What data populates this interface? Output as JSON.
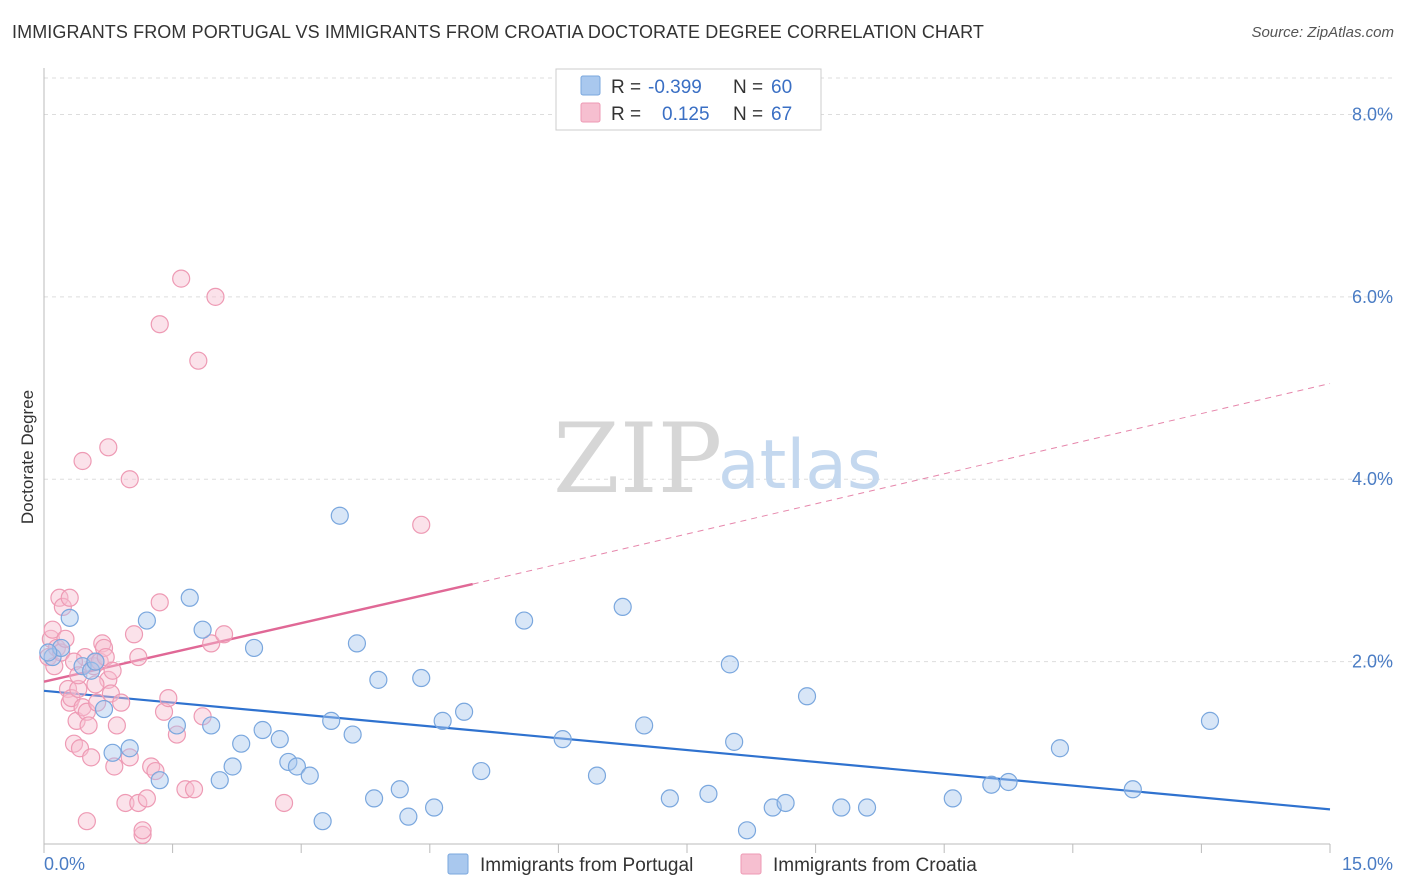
{
  "title": "IMMIGRANTS FROM PORTUGAL VS IMMIGRANTS FROM CROATIA DOCTORATE DEGREE CORRELATION CHART",
  "source": "Source: ZipAtlas.com",
  "watermark": {
    "zip": "ZIP",
    "atlas": "atlas"
  },
  "colors": {
    "portugal_fill": "#a9c8ee",
    "portugal_stroke": "#7aa7de",
    "portugal_line": "#2f72cf",
    "croatia_fill": "#f6bfd0",
    "croatia_stroke": "#ee9ab4",
    "croatia_line": "#e06896",
    "grid": "#dddddd",
    "tick_label": "#4a7cc4"
  },
  "legend": {
    "rows": [
      {
        "r_label": "R =",
        "r_value": "-0.399",
        "n_label": "N =",
        "n_value": "60"
      },
      {
        "r_label": "R =",
        "r_value": "0.125",
        "n_label": "N =",
        "n_value": "67"
      }
    ]
  },
  "bottom_legend": [
    "Immigrants from Portugal",
    "Immigrants from Croatia"
  ],
  "chart_data": {
    "type": "scatter",
    "title": "IMMIGRANTS FROM PORTUGAL VS IMMIGRANTS FROM CROATIA DOCTORATE DEGREE CORRELATION CHART",
    "xlabel": "",
    "ylabel": "Doctorate Degree",
    "xlim": [
      0,
      15
    ],
    "ylim": [
      0,
      8.4
    ],
    "x_tick_labels": [
      "0.0%",
      "15.0%"
    ],
    "y_ticks": [
      2,
      4,
      6,
      8
    ],
    "y_tick_labels": [
      "2.0%",
      "4.0%",
      "6.0%",
      "8.0%"
    ],
    "grid": true,
    "legend_position": "top-center",
    "series": [
      {
        "name": "Immigrants from Portugal",
        "r": -0.399,
        "n": 60,
        "trend": {
          "x0": 0,
          "y0": 1.68,
          "x1": 15,
          "y1": 0.38
        },
        "points": [
          [
            0.1,
            2.05
          ],
          [
            0.2,
            2.15
          ],
          [
            0.3,
            2.48
          ],
          [
            0.45,
            1.95
          ],
          [
            0.55,
            1.9
          ],
          [
            0.6,
            2.0
          ],
          [
            0.7,
            1.48
          ],
          [
            0.8,
            1.0
          ],
          [
            1.0,
            1.05
          ],
          [
            1.2,
            2.45
          ],
          [
            1.35,
            0.7
          ],
          [
            1.55,
            1.3
          ],
          [
            1.7,
            2.7
          ],
          [
            1.85,
            2.35
          ],
          [
            1.95,
            1.3
          ],
          [
            2.05,
            0.7
          ],
          [
            2.2,
            0.85
          ],
          [
            2.3,
            1.1
          ],
          [
            2.45,
            2.15
          ],
          [
            2.55,
            1.25
          ],
          [
            2.75,
            1.15
          ],
          [
            2.85,
            0.9
          ],
          [
            2.95,
            0.85
          ],
          [
            3.1,
            0.75
          ],
          [
            3.25,
            0.25
          ],
          [
            3.35,
            1.35
          ],
          [
            3.45,
            3.6
          ],
          [
            3.6,
            1.2
          ],
          [
            3.65,
            2.2
          ],
          [
            3.85,
            0.5
          ],
          [
            3.9,
            1.8
          ],
          [
            4.15,
            0.6
          ],
          [
            4.25,
            0.3
          ],
          [
            4.4,
            1.82
          ],
          [
            4.55,
            0.4
          ],
          [
            4.65,
            1.35
          ],
          [
            4.9,
            1.45
          ],
          [
            5.1,
            0.8
          ],
          [
            5.6,
            2.45
          ],
          [
            6.05,
            1.15
          ],
          [
            6.45,
            0.75
          ],
          [
            6.75,
            2.6
          ],
          [
            7.0,
            1.3
          ],
          [
            7.3,
            0.5
          ],
          [
            7.75,
            0.55
          ],
          [
            8.0,
            1.97
          ],
          [
            8.05,
            1.12
          ],
          [
            8.2,
            0.15
          ],
          [
            8.5,
            0.4
          ],
          [
            8.65,
            0.45
          ],
          [
            8.9,
            1.62
          ],
          [
            9.3,
            0.4
          ],
          [
            9.6,
            0.4
          ],
          [
            10.6,
            0.5
          ],
          [
            11.05,
            0.65
          ],
          [
            11.25,
            0.68
          ],
          [
            11.85,
            1.05
          ],
          [
            12.7,
            0.6
          ],
          [
            13.6,
            1.35
          ],
          [
            0.05,
            2.1
          ]
        ]
      },
      {
        "name": "Immigrants from Croatia",
        "r": 0.125,
        "n": 67,
        "trend": {
          "x0": 0,
          "y0": 1.78,
          "x1": 5.0,
          "y1": 2.85
        },
        "trend_extended": {
          "x0": 5.0,
          "y0": 2.85,
          "x1": 15,
          "y1": 5.05
        },
        "points": [
          [
            0.05,
            2.05
          ],
          [
            0.08,
            2.25
          ],
          [
            0.1,
            2.35
          ],
          [
            0.12,
            1.95
          ],
          [
            0.15,
            2.15
          ],
          [
            0.18,
            2.7
          ],
          [
            0.2,
            2.1
          ],
          [
            0.22,
            2.6
          ],
          [
            0.25,
            2.25
          ],
          [
            0.28,
            1.7
          ],
          [
            0.3,
            1.55
          ],
          [
            0.32,
            1.6
          ],
          [
            0.35,
            1.1
          ],
          [
            0.38,
            1.35
          ],
          [
            0.4,
            1.7
          ],
          [
            0.42,
            1.05
          ],
          [
            0.45,
            1.5
          ],
          [
            0.48,
            2.05
          ],
          [
            0.5,
            1.45
          ],
          [
            0.52,
            1.3
          ],
          [
            0.55,
            0.95
          ],
          [
            0.58,
            1.95
          ],
          [
            0.6,
            2.0
          ],
          [
            0.62,
            1.55
          ],
          [
            0.65,
            2.0
          ],
          [
            0.68,
            2.2
          ],
          [
            0.7,
            2.15
          ],
          [
            0.72,
            2.05
          ],
          [
            0.75,
            1.8
          ],
          [
            0.78,
            1.65
          ],
          [
            0.8,
            1.9
          ],
          [
            0.82,
            0.85
          ],
          [
            0.85,
            1.3
          ],
          [
            0.9,
            1.55
          ],
          [
            0.95,
            0.45
          ],
          [
            1.0,
            0.95
          ],
          [
            1.05,
            2.3
          ],
          [
            1.1,
            0.45
          ],
          [
            1.15,
            0.1
          ],
          [
            1.2,
            0.5
          ],
          [
            1.25,
            0.85
          ],
          [
            1.3,
            0.8
          ],
          [
            1.35,
            2.65
          ],
          [
            1.4,
            1.45
          ],
          [
            1.45,
            1.6
          ],
          [
            1.55,
            1.2
          ],
          [
            1.65,
            0.6
          ],
          [
            1.75,
            0.6
          ],
          [
            1.85,
            1.4
          ],
          [
            1.95,
            2.2
          ],
          [
            2.1,
            2.3
          ],
          [
            0.45,
            4.2
          ],
          [
            0.75,
            4.35
          ],
          [
            1.0,
            4.0
          ],
          [
            1.35,
            5.7
          ],
          [
            1.6,
            6.2
          ],
          [
            1.8,
            5.3
          ],
          [
            2.0,
            6.0
          ],
          [
            4.4,
            3.5
          ],
          [
            2.8,
            0.45
          ],
          [
            0.3,
            2.7
          ],
          [
            0.5,
            0.25
          ],
          [
            0.35,
            2.0
          ],
          [
            1.1,
            2.05
          ],
          [
            0.6,
            1.75
          ],
          [
            1.15,
            0.15
          ],
          [
            0.4,
            1.85
          ]
        ]
      }
    ]
  }
}
